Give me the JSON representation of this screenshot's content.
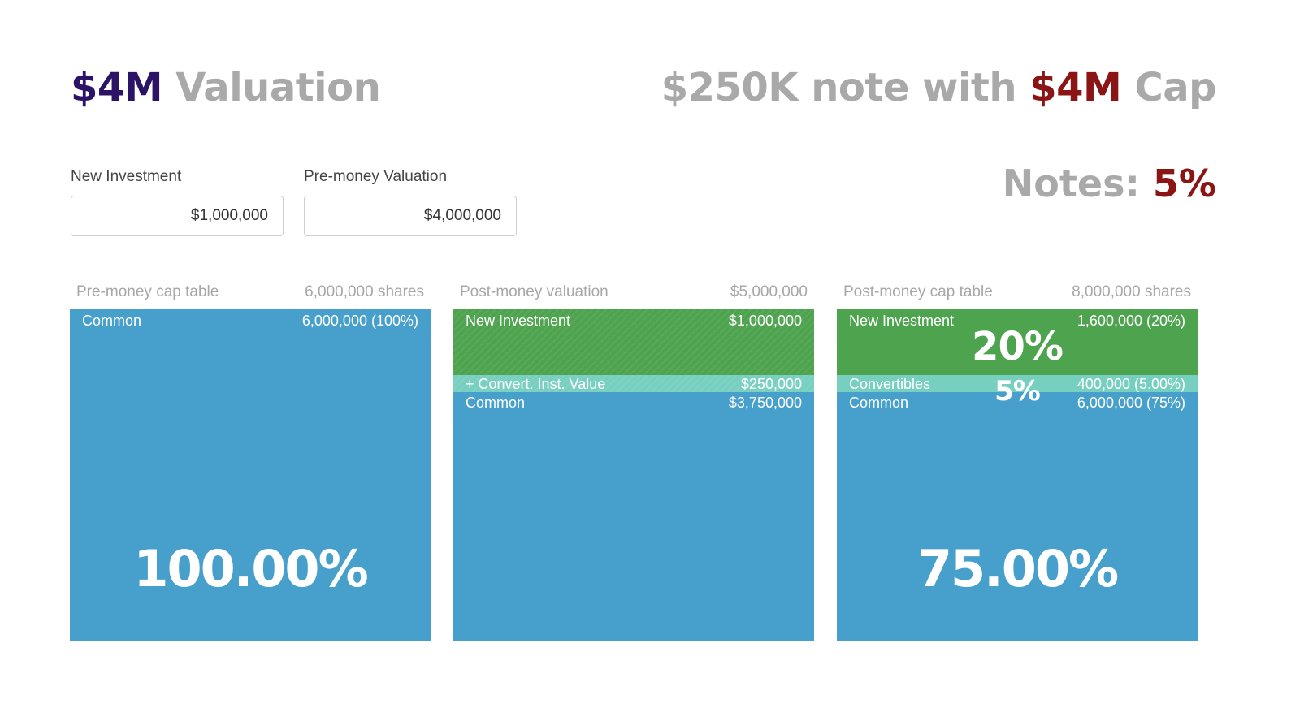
{
  "headline_left": {
    "value": "$4M",
    "label": "Valuation"
  },
  "headline_right": {
    "prefix": "$250K note with",
    "value": "$4M",
    "suffix": "Cap"
  },
  "notes": {
    "label": "Notes:",
    "value": "5%"
  },
  "inputs": {
    "new_investment": {
      "label": "New Investment",
      "value": "$1,000,000"
    },
    "pre_money_valuation": {
      "label": "Pre-money Valuation",
      "value": "$4,000,000"
    }
  },
  "panels": [
    {
      "title": "Pre-money cap table",
      "summary": "6,000,000 shares",
      "segments": [
        {
          "label": "Common",
          "value": "6,000,000 (100%)"
        }
      ],
      "big_label": "100.00%"
    },
    {
      "title": "Post-money valuation",
      "summary": "$5,000,000",
      "segments": [
        {
          "label": "New Investment",
          "value": "$1,000,000"
        },
        {
          "label": "+ Convert. Inst. Value",
          "value": "$250,000"
        },
        {
          "label": "Common",
          "value": "$3,750,000"
        }
      ]
    },
    {
      "title": "Post-money cap table",
      "summary": "8,000,000 shares",
      "segments": [
        {
          "label": "New Investment",
          "value": "1,600,000 (20%)"
        },
        {
          "label": "Convertibles",
          "value": "400,000 (5.00%)"
        },
        {
          "label": "Common",
          "value": "6,000,000 (75%)"
        }
      ],
      "overlay_labels": [
        "20%",
        "5%"
      ],
      "big_label": "75.00%"
    }
  ],
  "colors": {
    "green": "#4da34e",
    "teal": "#77cfc0",
    "blue": "#46a0cb",
    "purple": "#2d1366",
    "red": "#8b1515",
    "gray": "#a9a9a9"
  }
}
